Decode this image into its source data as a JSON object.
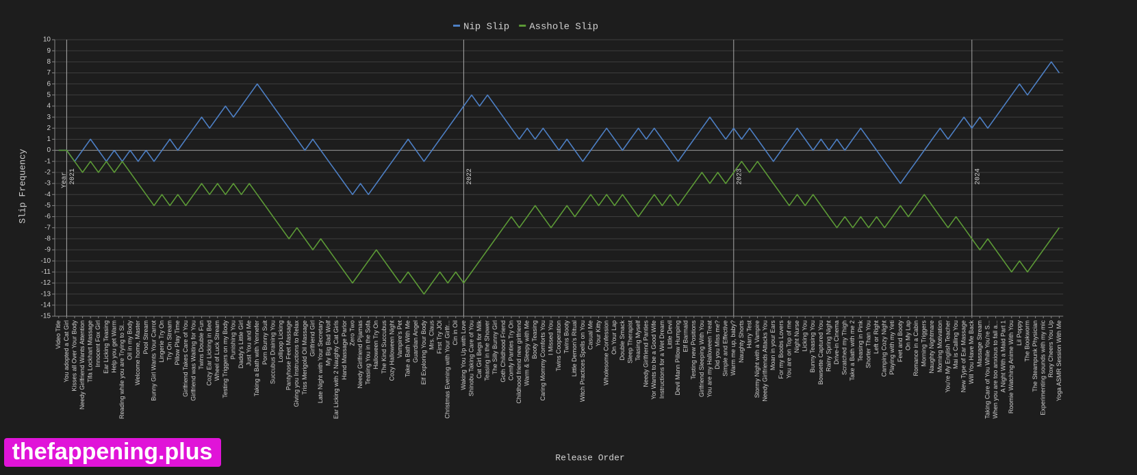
{
  "chart_data": {
    "type": "line",
    "x_label": "Release Order",
    "y_label": "Slip Frequency",
    "year_label": "Year",
    "watermark": "thefappening.plus",
    "grid": true,
    "legend": "top",
    "ylim": [
      -15,
      10
    ],
    "yticks": [
      -15,
      -14,
      -13,
      -12,
      -11,
      -10,
      -9,
      -8,
      -7,
      -6,
      -5,
      -4,
      -3,
      -2,
      -1,
      0,
      1,
      2,
      3,
      4,
      5,
      6,
      7,
      8,
      9,
      10
    ],
    "year_markers": [
      {
        "label": "2021",
        "at": "You adopted a Cat Girl"
      },
      {
        "label": "2022",
        "at": "Waking You Up with Love"
      },
      {
        "label": "2023",
        "at": "Warm me up, baby?"
      },
      {
        "label": "2024",
        "at": "Will You Have Me Back"
      }
    ],
    "categories": [
      "Video Title",
      "You adopted a Cat Girl",
      "Kisses all Over Your Body",
      "Needy Girlfriend Wants Attention",
      "Tifa Lockhart Massage",
      "Innocent Fox Girl",
      "Ear Licking Teasing",
      "Help you get Warm",
      "Reading while you are Trying to Sl...",
      "Oil in my Body",
      "Welcome home, Master",
      "Pool Stream",
      "Bunny Girl Wants Your Carrot",
      "Lingerie Try On",
      "Try On Stream",
      "Pillow Play Time",
      "Girlfriend Takes Care of You",
      "Girlfriend was Waiting for You",
      "Twins Double Fun",
      "Cozy Ear Licking in Bed",
      "Wheel of Luck Stream",
      "Testing Triggers on my Body",
      "Punishing You",
      "Daddy's Little Girl",
      "Just You and Me",
      "Taking a Bath with Yennefer",
      "Porn Bunny Suit",
      "Succubus Draining You",
      "Lollipop Licking",
      "Pantyhose Feet Massage",
      "Giving you Instructions to Relax",
      "Triss Merigold Oil Massage",
      "Girlfriend Girl",
      "Late Night with Your Secretary",
      "My Big Bad Wolf",
      "Ear Licking with 2 Naughty Cat Girls",
      "Hand Massage Parlor",
      "Zero Two",
      "Needy Girlfriend Pijamas",
      "Teasing You in the Sofa",
      "Halloween Try On",
      "The Kind Succubus",
      "Cozy Halloween Night",
      "Vampire's Pet",
      "Take a Bath With Me",
      "Guardian Angel",
      "Elf Exploring Your Body",
      "Mrs. Claus",
      "First Try JOI",
      "Christmas Evening with Your Girlfr...",
      "Cin in Oil",
      "Waking You Up with Love",
      "Shinobu Taking Care of You",
      "Cat Girl Begs for Milk",
      "Teasing in the Shower",
      "The Silly Bunny Girl",
      "Goth Childhood Friend",
      "Comfy Panties Try On",
      "Childhood friend new girlfriend",
      "Warm & Sleepy with Me",
      "Booty Teasing",
      "Caring Mommy Comforts You",
      "I Missed You",
      "Twins Cooperation",
      "Twins Booty",
      "Little Demon's Ritual",
      "Witch Practices Spells on You",
      "Casual Me",
      "Your Kitty",
      "Wholesome Confession",
      "On Your Lap",
      "Double Smack",
      "Sleep Therapist",
      "Teasing Myself",
      "Needy Girlfriend Panties",
      "Yor Wants to be a Good Wife",
      "Instructions for a Wet Dream",
      "Little Devil",
      "Devil Mann Pillow Humping",
      "Elf Barmaid",
      "Testing new Positions",
      "Girlfriend Sleeping With You",
      "You are my Halloween Treat",
      "Did you Miss me?",
      "Simple and Effective",
      "Warm me up, baby?",
      "Naughty Shorts",
      "Harry Test",
      "Stormy Night with a Vampire",
      "Needy Girlfriends Attacks You",
      "Moan in your Ears",
      "For my Boobs Lovers",
      "You are on Top of me",
      "Night Nurse",
      "Licking You",
      "Bunny Teasing You",
      "Bowsette Captured You",
      "Rainy Spring Night",
      "Drive-in Cinema",
      "Scratched my Thigh",
      "Take a Bath with me 2",
      "Teasing in Pink",
      "Shorter Than You",
      "Left or Right",
      "Camping Cozy Night",
      "Playing with my Yeti",
      "Feet and Booty",
      "On My Lap",
      "Romance in a Cabin",
      "Morning Triggers",
      "Naughty Nightmare",
      "Morning Motivation",
      "You're My English Teacher",
      "Mai is Calling You",
      "New Type of Ear Massage",
      "Will You Have Me Back",
      "Massage Stream",
      "Taking Care of You While You're S...",
      "When you are too anxious to fall a...",
      "A Night With a Maid Part 1",
      "Roomie Watching Anime With You",
      "Lil Poppy",
      "The Bookworm",
      "The Steampunk Physician",
      "Experimenting sounds with my mic",
      "Roxy Cheers You Up",
      "Yoga ASMR Session With Me"
    ],
    "series": [
      {
        "name": "Nip Slip",
        "color": "#4d7fc4",
        "values": [
          0,
          0,
          -1,
          0,
          1,
          0,
          -1,
          0,
          -1,
          0,
          -1,
          0,
          -1,
          0,
          1,
          0,
          1,
          2,
          3,
          2,
          3,
          4,
          3,
          4,
          5,
          6,
          5,
          4,
          3,
          2,
          1,
          0,
          1,
          0,
          -1,
          -2,
          -3,
          -4,
          -3,
          -4,
          -3,
          -2,
          -1,
          0,
          1,
          0,
          -1,
          0,
          1,
          2,
          3,
          4,
          5,
          4,
          5,
          4,
          3,
          2,
          1,
          2,
          1,
          2,
          1,
          0,
          1,
          0,
          -1,
          0,
          1,
          2,
          1,
          0,
          1,
          2,
          1,
          2,
          1,
          0,
          -1,
          0,
          1,
          2,
          3,
          2,
          1,
          2,
          1,
          2,
          1,
          0,
          -1,
          0,
          1,
          2,
          1,
          0,
          1,
          0,
          1,
          0,
          1,
          2,
          1,
          0,
          -1,
          -2,
          -3,
          -2,
          -1,
          0,
          1,
          2,
          1,
          2,
          3,
          2,
          3,
          2,
          3,
          4,
          5,
          6,
          5,
          6,
          7,
          8,
          7
        ]
      },
      {
        "name": "Asshole Slip",
        "color": "#5c9a36",
        "values": [
          0,
          0,
          -1,
          -2,
          -1,
          -2,
          -1,
          -2,
          -1,
          -2,
          -3,
          -4,
          -5,
          -4,
          -5,
          -4,
          -5,
          -4,
          -3,
          -4,
          -3,
          -4,
          -3,
          -4,
          -3,
          -4,
          -5,
          -6,
          -7,
          -8,
          -7,
          -8,
          -9,
          -8,
          -9,
          -10,
          -11,
          -12,
          -11,
          -10,
          -9,
          -10,
          -11,
          -12,
          -11,
          -12,
          -13,
          -12,
          -11,
          -12,
          -11,
          -12,
          -11,
          -10,
          -9,
          -8,
          -7,
          -6,
          -7,
          -6,
          -5,
          -6,
          -7,
          -6,
          -5,
          -6,
          -5,
          -4,
          -5,
          -4,
          -5,
          -4,
          -5,
          -6,
          -5,
          -4,
          -5,
          -4,
          -5,
          -4,
          -3,
          -2,
          -3,
          -2,
          -3,
          -2,
          -1,
          -2,
          -1,
          -2,
          -3,
          -4,
          -5,
          -4,
          -5,
          -4,
          -5,
          -6,
          -7,
          -6,
          -7,
          -6,
          -7,
          -6,
          -7,
          -6,
          -5,
          -6,
          -5,
          -4,
          -5,
          -6,
          -7,
          -6,
          -7,
          -8,
          -9,
          -8,
          -9,
          -10,
          -11,
          -10,
          -11,
          -10,
          -9,
          -8,
          -7
        ]
      }
    ]
  }
}
